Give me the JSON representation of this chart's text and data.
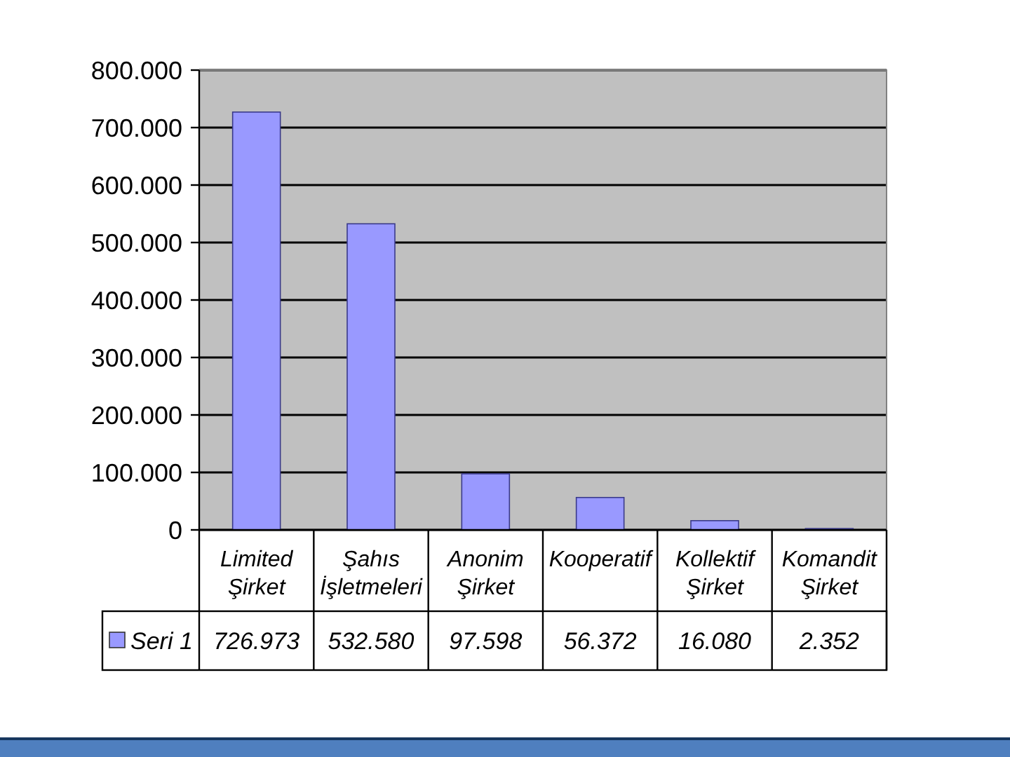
{
  "chart_data": {
    "type": "bar",
    "categories": [
      "Limited Şirket",
      "Şahıs İşletmeleri",
      "Anonim Şirket",
      "Kooperatif",
      "Kollektif Şirket",
      "Komandit Şirket"
    ],
    "series": [
      {
        "name": "Seri 1",
        "color": "#9999ff",
        "values": [
          726973,
          532580,
          97598,
          56372,
          16080,
          2352
        ],
        "value_labels": [
          "726.973",
          "532.580",
          "97.598",
          "56.372",
          "16.080",
          "2.352"
        ]
      }
    ],
    "ylim": [
      0,
      800000
    ],
    "yticks": [
      0,
      {
        "value": 100000,
        "label": "100.000"
      },
      {
        "value": 200000,
        "label": "200.000"
      },
      {
        "value": 300000,
        "label": "300.000"
      },
      {
        "value": 400000,
        "label": "400.000"
      },
      {
        "value": 500000,
        "label": "500.000"
      },
      {
        "value": 600000,
        "label": "600.000"
      },
      {
        "value": 700000,
        "label": "700.000"
      },
      {
        "value": 800000,
        "label": "800.000"
      }
    ],
    "grid": "y",
    "legend": "bottom"
  }
}
